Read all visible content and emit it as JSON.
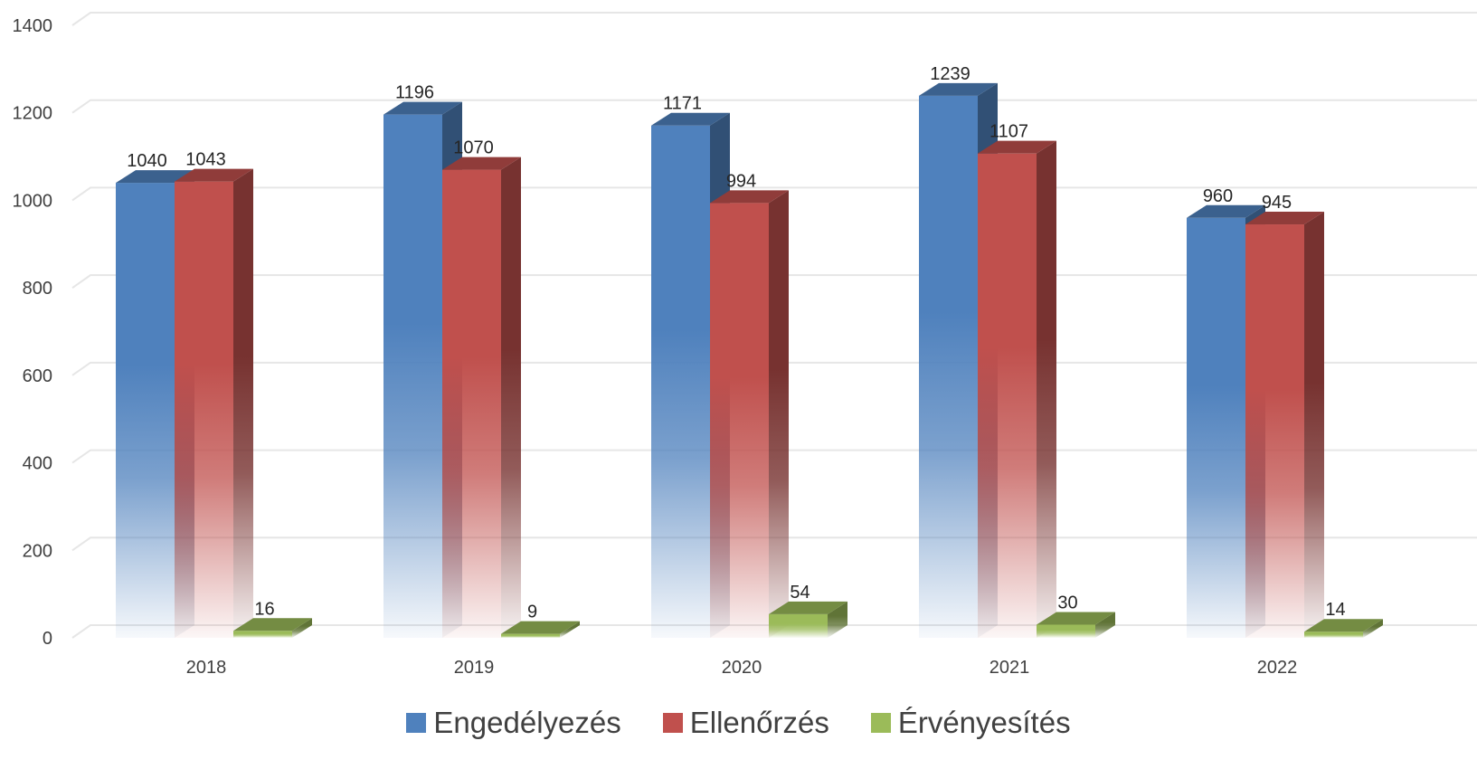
{
  "chart_data": {
    "type": "bar",
    "categories": [
      "2018",
      "2019",
      "2020",
      "2021",
      "2022"
    ],
    "series": [
      {
        "name": "Engedélyezés",
        "values": [
          1040,
          1196,
          1171,
          1239,
          960
        ],
        "color": "#4F81BD"
      },
      {
        "name": "Ellenőrzés",
        "values": [
          1043,
          1070,
          994,
          1107,
          945
        ],
        "color": "#C0504D"
      },
      {
        "name": "Érvényesítés",
        "values": [
          16,
          9,
          54,
          30,
          14
        ],
        "color": "#9BBB59"
      }
    ],
    "y_ticks": [
      "0",
      "200",
      "400",
      "600",
      "800",
      "1000",
      "1200",
      "1400"
    ],
    "ylim": [
      0,
      1400
    ],
    "grid": true,
    "legend_position": "bottom",
    "style": "3d-column"
  }
}
